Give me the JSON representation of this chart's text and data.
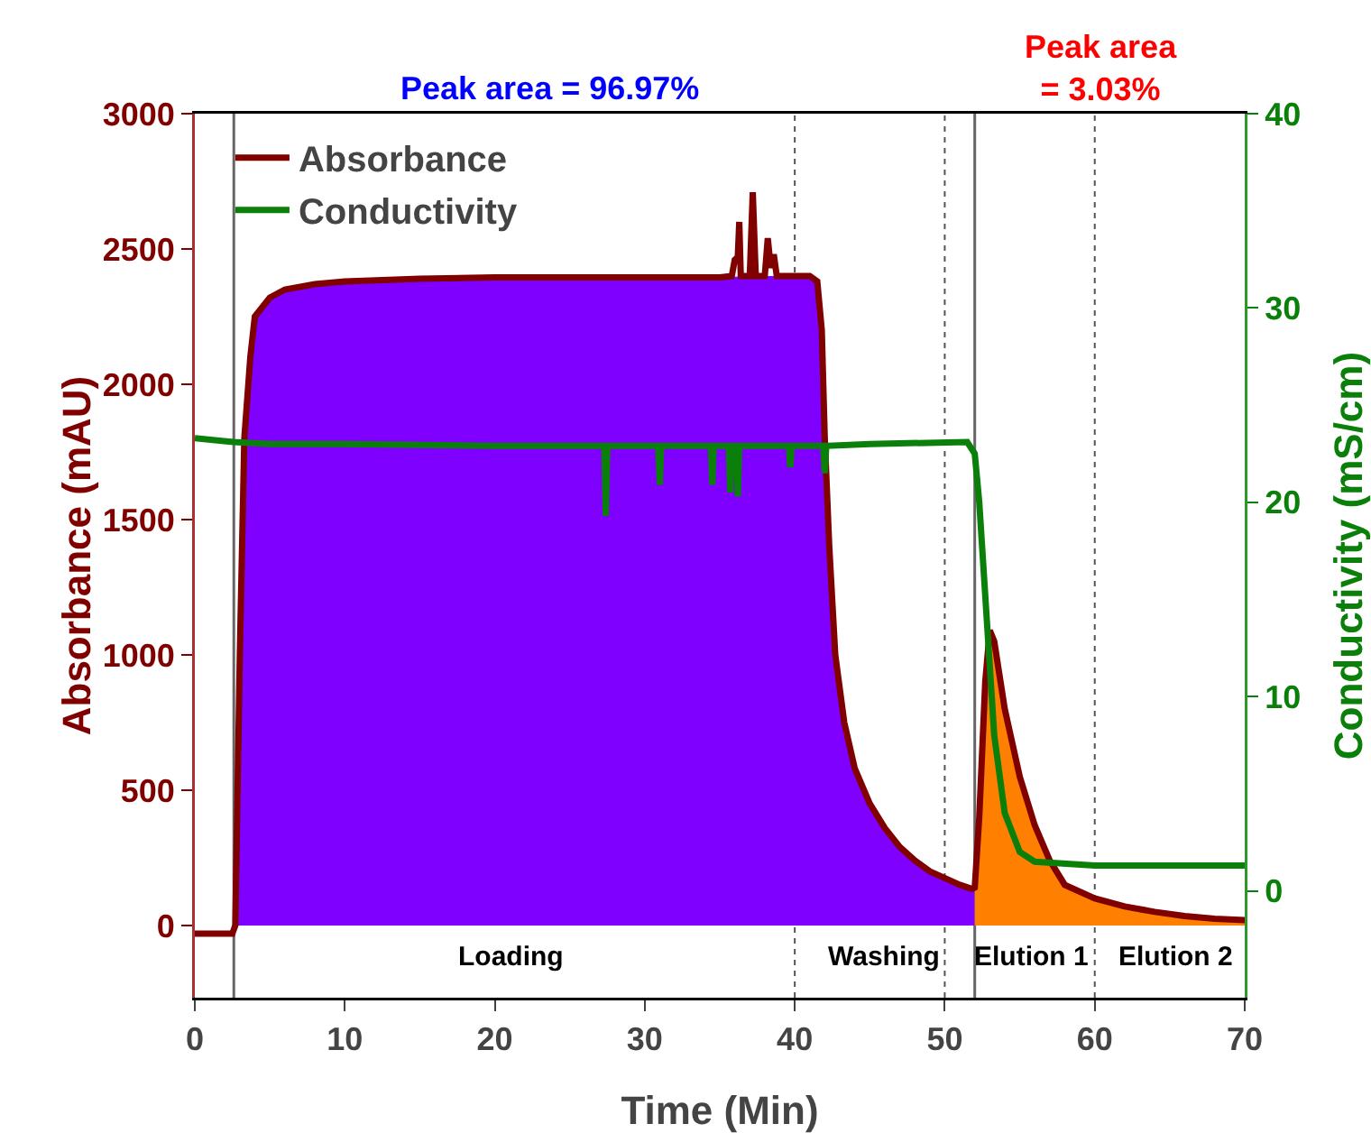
{
  "chart_data": {
    "type": "line",
    "xlabel": "Time (Min)",
    "ylabel": "Absorbance (mAU)",
    "y2label": "Conductivity (mS/cm)",
    "xlim": [
      0,
      70
    ],
    "xticks": [
      0,
      10,
      20,
      30,
      40,
      50,
      60,
      70
    ],
    "ylim": [
      -267,
      3000
    ],
    "yticks": [
      0,
      500,
      1000,
      1500,
      2000,
      2500,
      3000
    ],
    "y2lim": [
      -5.5,
      40
    ],
    "y2ticks": [
      0,
      10,
      20,
      30,
      40
    ],
    "grid": false,
    "legend": "top left",
    "marker": "none",
    "line_style": "solid",
    "series": [
      {
        "type": "area",
        "color": "#8000ff",
        "x": [
          2.6,
          2.7,
          3,
          3.3,
          3.7,
          4,
          5,
          6,
          8,
          10,
          15,
          20,
          25,
          30,
          35,
          40,
          41,
          41.5,
          41.8,
          42,
          42.3,
          42.7,
          43.3,
          44,
          45,
          46,
          47,
          48,
          49,
          50,
          51,
          51.8,
          52
        ],
        "values": [
          0,
          0,
          1000,
          1800,
          2100,
          2250,
          2320,
          2350,
          2370,
          2380,
          2390,
          2395,
          2395,
          2395,
          2395,
          2400,
          2400,
          2380,
          2200,
          1800,
          1400,
          1000,
          750,
          580,
          450,
          360,
          290,
          240,
          200,
          175,
          150,
          135,
          140
        ]
      },
      {
        "type": "area",
        "color": "#ff8000",
        "x": [
          52,
          52.3,
          52.7,
          53,
          53.3,
          54,
          55,
          56,
          57,
          58,
          60,
          62,
          64,
          66,
          68,
          70
        ],
        "values": [
          140,
          400,
          900,
          1090,
          1050,
          800,
          550,
          370,
          240,
          150,
          100,
          70,
          50,
          35,
          25,
          20
        ]
      },
      {
        "name": "Absorbance",
        "color": "#800000",
        "x": [
          0,
          2.5,
          2.7,
          3,
          3.3,
          3.7,
          4,
          5,
          6,
          8,
          10,
          15,
          20,
          25,
          30,
          35,
          35.8,
          36,
          36.2,
          36.3,
          36.4,
          37,
          37.2,
          37.4,
          38,
          38.2,
          38.4,
          38.6,
          38.8,
          40,
          41,
          41.5,
          41.8,
          42,
          42.3,
          42.7,
          43.3,
          44,
          45,
          46,
          47,
          48,
          49,
          50,
          51,
          51.8,
          52,
          52.3,
          52.7,
          53,
          53.3,
          54,
          55,
          56,
          57,
          58,
          60,
          62,
          64,
          66,
          68,
          70
        ],
        "values": [
          -30,
          -30,
          0,
          1000,
          1800,
          2100,
          2250,
          2320,
          2350,
          2370,
          2380,
          2390,
          2395,
          2395,
          2395,
          2395,
          2400,
          2460,
          2470,
          2600,
          2400,
          2400,
          2710,
          2400,
          2400,
          2540,
          2430,
          2480,
          2400,
          2400,
          2400,
          2380,
          2200,
          1800,
          1400,
          1000,
          750,
          580,
          450,
          360,
          290,
          240,
          200,
          175,
          150,
          135,
          140,
          400,
          900,
          1090,
          1050,
          800,
          550,
          370,
          240,
          150,
          100,
          70,
          50,
          35,
          25,
          20
        ]
      },
      {
        "name": "Conductivity",
        "color": "#0a800a",
        "axis": "y2",
        "x": [
          0,
          2.6,
          5,
          10,
          20,
          27.3,
          27.4,
          27.5,
          30.9,
          31,
          31.1,
          34.4,
          34.5,
          34.6,
          35.6,
          35.7,
          35.8,
          36.1,
          36.2,
          36.3,
          39.6,
          39.7,
          39.8,
          41.9,
          42,
          42.1,
          45,
          51.5,
          52,
          52.3,
          52.8,
          53.3,
          54,
          55,
          56,
          60,
          70
        ],
        "values": [
          23.3,
          23.1,
          23,
          23,
          22.9,
          22.9,
          19.3,
          22.9,
          22.9,
          20.9,
          22.9,
          22.9,
          20.9,
          22.9,
          22.9,
          20.5,
          22.9,
          22.9,
          20.3,
          22.9,
          22.9,
          21.8,
          22.9,
          22.9,
          21.5,
          22.9,
          23,
          23.1,
          22.5,
          20,
          14,
          8,
          4,
          2,
          1.5,
          1.3,
          1.3
        ]
      }
    ],
    "ref_lines": [
      {
        "axis": "x",
        "value": 2.6,
        "color": "#666666",
        "line_style": "solid"
      },
      {
        "axis": "x",
        "value": 40,
        "color": "#555555",
        "line_style": "dotted"
      },
      {
        "axis": "x",
        "value": 50,
        "color": "#555555",
        "line_style": "dotted"
      },
      {
        "axis": "x",
        "value": 52,
        "color": "#666666",
        "line_style": "solid"
      },
      {
        "axis": "x",
        "value": 60,
        "color": "#555555",
        "line_style": "dotted"
      }
    ],
    "annotations": [
      "Peak area = 96.97%",
      "Peak area\n= 3.03%",
      "Loading",
      "Washing",
      "Elution 1",
      "Elution 2"
    ]
  }
}
